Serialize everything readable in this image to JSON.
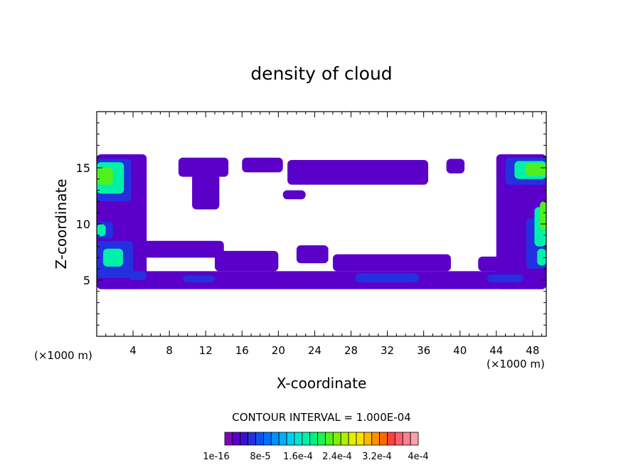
{
  "chart_data": {
    "type": "heatmap",
    "title": "density of cloud",
    "xlabel": "X-coordinate",
    "ylabel": "Z-coordinate",
    "x_unit_left": "(×1000 m)",
    "x_unit_right": "(×1000 m)",
    "xlim": [
      0,
      49.5
    ],
    "ylim": [
      0,
      20
    ],
    "x_ticks": [
      4,
      8,
      12,
      16,
      20,
      24,
      28,
      32,
      36,
      40,
      44,
      48
    ],
    "y_ticks": [
      5,
      10,
      15
    ],
    "contour_interval_text": "CONTOUR INTERVAL = 1.000E-04",
    "colorbar": {
      "colors": [
        "#7f00bf",
        "#5a00c8",
        "#3a10d0",
        "#2430e0",
        "#1050f0",
        "#0070ff",
        "#0090ff",
        "#00b0ff",
        "#00d0f0",
        "#00e8d0",
        "#00f0a8",
        "#00f080",
        "#20f050",
        "#50f020",
        "#80f000",
        "#b0f000",
        "#e0f000",
        "#ffe000",
        "#ffb800",
        "#ff9000",
        "#ff6800",
        "#ff4040",
        "#ff6070",
        "#ff8090",
        "#ffa0a8"
      ],
      "tick_labels": [
        "1e-16",
        "8e-5",
        "1.6e-4",
        "2.4e-4",
        "3.2e-4",
        "4e-4"
      ]
    },
    "regions": [
      {
        "level": 1,
        "x": 0,
        "z": 4.2,
        "w": 49.5,
        "h": 1.6
      },
      {
        "level": 1,
        "x": 0,
        "z": 4.2,
        "w": 5.5,
        "h": 12
      },
      {
        "level": 1,
        "x": 44,
        "z": 4.2,
        "w": 5.5,
        "h": 12
      },
      {
        "level": 1,
        "x": 9,
        "z": 14.2,
        "w": 5.5,
        "h": 1.7
      },
      {
        "level": 1,
        "x": 10.5,
        "z": 11.3,
        "w": 3,
        "h": 3.2
      },
      {
        "level": 1,
        "x": 16,
        "z": 14.6,
        "w": 4.5,
        "h": 1.3
      },
      {
        "level": 1,
        "x": 21,
        "z": 13.5,
        "w": 15.5,
        "h": 2.2
      },
      {
        "level": 1,
        "x": 20.5,
        "z": 12.2,
        "w": 2.5,
        "h": 0.8
      },
      {
        "level": 1,
        "x": 38.5,
        "z": 14.5,
        "w": 2,
        "h": 1.3
      },
      {
        "level": 1,
        "x": 5,
        "z": 7,
        "w": 9,
        "h": 1.5
      },
      {
        "level": 1,
        "x": 13,
        "z": 5.8,
        "w": 7,
        "h": 1.8
      },
      {
        "level": 1,
        "x": 22,
        "z": 6.5,
        "w": 3.5,
        "h": 1.6
      },
      {
        "level": 1,
        "x": 26,
        "z": 5.8,
        "w": 13,
        "h": 1.5
      },
      {
        "level": 1,
        "x": 42,
        "z": 5.8,
        "w": 3,
        "h": 1.3
      },
      {
        "level": 1,
        "x": 0,
        "z": 9.5,
        "w": 5.2,
        "h": 1.6
      },
      {
        "level": 3,
        "x": 0,
        "z": 12,
        "w": 3.8,
        "h": 3.8
      },
      {
        "level": 3,
        "x": 0,
        "z": 5.2,
        "w": 4,
        "h": 3.3
      },
      {
        "level": 3,
        "x": 0,
        "z": 8.7,
        "w": 1.8,
        "h": 1.5
      },
      {
        "level": 3,
        "x": 45,
        "z": 13.5,
        "w": 4.5,
        "h": 2.4
      },
      {
        "level": 3,
        "x": 47.3,
        "z": 6,
        "w": 2.2,
        "h": 4.5
      },
      {
        "level": 3,
        "x": 9.5,
        "z": 4.8,
        "w": 3.5,
        "h": 0.6
      },
      {
        "level": 3,
        "x": 28.5,
        "z": 4.8,
        "w": 7,
        "h": 0.8
      },
      {
        "level": 3,
        "x": 43,
        "z": 4.8,
        "w": 4,
        "h": 0.7
      },
      {
        "level": 3,
        "x": 3.5,
        "z": 5,
        "w": 2,
        "h": 0.8
      },
      {
        "level": 10,
        "x": 0,
        "z": 12.7,
        "w": 3,
        "h": 2.8
      },
      {
        "level": 10,
        "x": 0.7,
        "z": 6.2,
        "w": 2.2,
        "h": 1.6
      },
      {
        "level": 10,
        "x": 0,
        "z": 8.9,
        "w": 1,
        "h": 1.1
      },
      {
        "level": 10,
        "x": 46,
        "z": 14,
        "w": 3.5,
        "h": 1.6
      },
      {
        "level": 10,
        "x": 48.2,
        "z": 8,
        "w": 1.3,
        "h": 3.5
      },
      {
        "level": 10,
        "x": 48.5,
        "z": 6.3,
        "w": 1,
        "h": 1.5
      },
      {
        "level": 13,
        "x": 0,
        "z": 13.5,
        "w": 1.8,
        "h": 1.5
      },
      {
        "level": 13,
        "x": 47.2,
        "z": 14.3,
        "w": 2.3,
        "h": 1.1
      },
      {
        "level": 13,
        "x": 48.8,
        "z": 9.5,
        "w": 0.7,
        "h": 2.5
      }
    ]
  }
}
